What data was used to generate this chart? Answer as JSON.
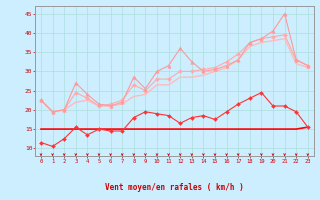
{
  "title": "",
  "xlabel": "Vent moyen/en rafales ( km/h )",
  "ylabel": "",
  "xlim": [
    -0.5,
    23.5
  ],
  "ylim": [
    8,
    47
  ],
  "yticks": [
    10,
    15,
    20,
    25,
    30,
    35,
    40,
    45
  ],
  "xticks": [
    0,
    1,
    2,
    3,
    4,
    5,
    6,
    7,
    8,
    9,
    10,
    11,
    12,
    13,
    14,
    15,
    16,
    17,
    18,
    19,
    20,
    21,
    22,
    23
  ],
  "bg_color": "#cceeff",
  "grid_color": "#aadddd",
  "line1": {
    "y": [
      22.5,
      19.5,
      20.0,
      27.0,
      24.0,
      21.5,
      21.0,
      22.0,
      28.5,
      25.5,
      30.0,
      31.5,
      36.0,
      32.5,
      30.0,
      30.5,
      31.5,
      33.0,
      37.5,
      38.5,
      40.5,
      45.0,
      33.0,
      31.5
    ],
    "color": "#ff9999",
    "lw": 0.8,
    "marker": "^",
    "ms": 2.5
  },
  "line2": {
    "y": [
      22.5,
      19.5,
      20.0,
      24.5,
      23.0,
      21.0,
      21.5,
      22.5,
      26.5,
      25.0,
      28.0,
      28.0,
      30.0,
      30.0,
      30.5,
      31.0,
      32.5,
      34.5,
      37.5,
      38.5,
      39.0,
      39.5,
      33.0,
      31.5
    ],
    "color": "#ffaaaa",
    "lw": 0.8,
    "marker": "D",
    "ms": 2.0
  },
  "line3": {
    "y": [
      22.5,
      19.5,
      20.0,
      22.0,
      22.5,
      21.0,
      21.0,
      21.5,
      23.5,
      24.0,
      26.5,
      26.5,
      28.5,
      28.5,
      29.0,
      30.0,
      31.0,
      33.0,
      36.5,
      37.5,
      38.0,
      38.5,
      32.0,
      31.0
    ],
    "color": "#ffbbbb",
    "lw": 1.0,
    "marker": null,
    "ms": 0
  },
  "line4": {
    "y": [
      11.5,
      10.5,
      12.5,
      15.5,
      13.5,
      15.0,
      14.5,
      14.5,
      18.0,
      19.5,
      19.0,
      18.5,
      16.5,
      18.0,
      18.5,
      17.5,
      19.5,
      21.5,
      23.0,
      24.5,
      21.0,
      21.0,
      19.5,
      15.5
    ],
    "color": "#ff3333",
    "lw": 0.8,
    "marker": "D",
    "ms": 2.0
  },
  "line5": {
    "y": [
      15.0,
      15.0,
      15.0,
      15.0,
      15.0,
      15.0,
      15.0,
      15.0,
      15.0,
      15.0,
      15.0,
      15.0,
      15.0,
      15.0,
      15.0,
      15.0,
      15.0,
      15.0,
      15.0,
      15.0,
      15.0,
      15.0,
      15.0,
      15.5
    ],
    "color": "#ff0000",
    "lw": 1.2,
    "marker": null,
    "ms": 0
  },
  "arrow_color": "#cc0000",
  "label_color": "#cc0000",
  "tick_color": "#cc0000",
  "axis_color": "#999999"
}
